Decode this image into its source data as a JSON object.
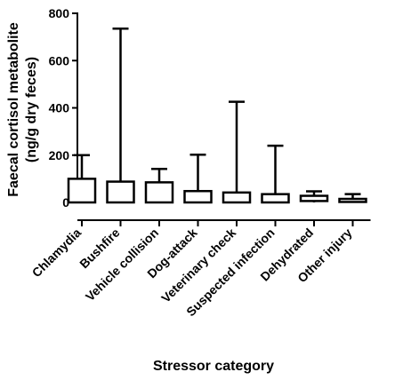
{
  "chart_data": {
    "type": "box",
    "title": "",
    "xlabel": "Stressor category",
    "ylabel": [
      "Faecal cortisol metabolite",
      "(ng/g dry feces)"
    ],
    "ylim": [
      0,
      800
    ],
    "yticks": [
      0,
      200,
      400,
      600,
      800
    ],
    "categories": [
      "Chlamydia",
      "Bushfire",
      "Vehicle collision",
      "Dog-attack",
      "Veterinary check",
      "Suspected infection",
      "Dehydrated",
      "Other injury"
    ],
    "series": [
      {
        "values": [
          {
            "min": 0,
            "q1": 0,
            "q3": 100,
            "max": 200
          },
          {
            "min": 0,
            "q1": 0,
            "q3": 88,
            "max": 735
          },
          {
            "min": 0,
            "q1": 0,
            "q3": 85,
            "max": 142
          },
          {
            "min": 0,
            "q1": 0,
            "q3": 48,
            "max": 202
          },
          {
            "min": 0,
            "q1": 0,
            "q3": 42,
            "max": 426
          },
          {
            "min": 0,
            "q1": 0,
            "q3": 35,
            "max": 240
          },
          {
            "min": 0,
            "q1": 6,
            "q3": 28,
            "max": 47
          },
          {
            "min": 0,
            "q1": 2,
            "q3": 15,
            "max": 35
          }
        ]
      }
    ],
    "grid": false,
    "legend": "none"
  }
}
